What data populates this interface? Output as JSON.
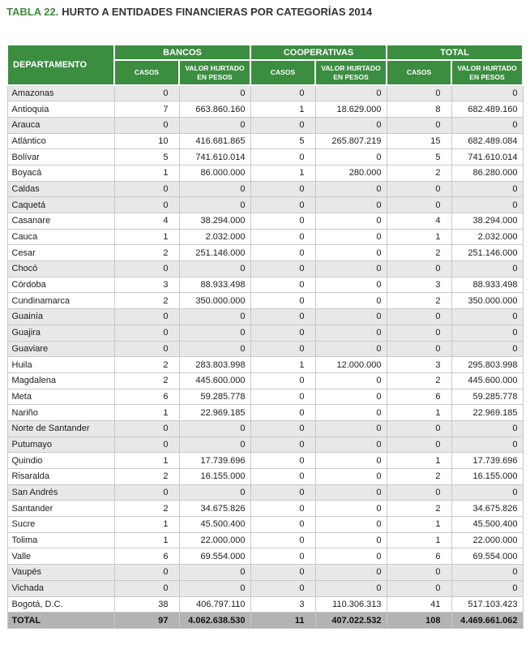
{
  "title": {
    "prefix": "TABLA 22.",
    "rest": "HURTO A ENTIDADES FINANCIERAS POR CATEGORÍAS 2014"
  },
  "colors": {
    "header_green": "#3b8d40",
    "title_green": "#3b8d40",
    "zero_row_gray": "#e8e8e8",
    "total_row_gray": "#b3b3b3",
    "border_gray": "#c9c9c9"
  },
  "chart_data": {
    "type": "table",
    "title": "TABLA 22. HURTO A ENTIDADES FINANCIERAS POR CATEGORÍAS 2014",
    "row_header": "DEPARTAMENTO",
    "column_groups": [
      "BANCOS",
      "COOPERATIVAS",
      "TOTAL"
    ],
    "sub_columns": [
      "CASOS",
      "VALOR HURTADO EN PESOS"
    ],
    "columns": [
      "DEPARTAMENTO",
      "BANCOS CASOS",
      "BANCOS VALOR HURTADO EN PESOS",
      "COOPERATIVAS CASOS",
      "COOPERATIVAS VALOR HURTADO EN PESOS",
      "TOTAL CASOS",
      "TOTAL VALOR HURTADO EN PESOS"
    ],
    "rows": [
      {
        "name": "Amazonas",
        "values": [
          "0",
          "0",
          "0",
          "0",
          "0",
          "0"
        ]
      },
      {
        "name": "Antioquia",
        "values": [
          "7",
          "663.860.160",
          "1",
          "18.629.000",
          "8",
          "682.489.160"
        ]
      },
      {
        "name": "Arauca",
        "values": [
          "0",
          "0",
          "0",
          "0",
          "0",
          "0"
        ]
      },
      {
        "name": "Atlántico",
        "values": [
          "10",
          "416.681.865",
          "5",
          "265.807.219",
          "15",
          "682.489.084"
        ]
      },
      {
        "name": "Bolívar",
        "values": [
          "5",
          "741.610.014",
          "0",
          "0",
          "5",
          "741.610.014"
        ]
      },
      {
        "name": "Boyacá",
        "values": [
          "1",
          "86.000.000",
          "1",
          "280.000",
          "2",
          "86.280.000"
        ]
      },
      {
        "name": "Caldas",
        "values": [
          "0",
          "0",
          "0",
          "0",
          "0",
          "0"
        ]
      },
      {
        "name": "Caquetá",
        "values": [
          "0",
          "0",
          "0",
          "0",
          "0",
          "0"
        ]
      },
      {
        "name": "Casanare",
        "values": [
          "4",
          "38.294.000",
          "0",
          "0",
          "4",
          "38.294.000"
        ]
      },
      {
        "name": "Cauca",
        "values": [
          "1",
          "2.032.000",
          "0",
          "0",
          "1",
          "2.032.000"
        ]
      },
      {
        "name": "Cesar",
        "values": [
          "2",
          "251.146.000",
          "0",
          "0",
          "2",
          "251.146.000"
        ]
      },
      {
        "name": "Chocó",
        "values": [
          "0",
          "0",
          "0",
          "0",
          "0",
          "0"
        ]
      },
      {
        "name": "Córdoba",
        "values": [
          "3",
          "88.933.498",
          "0",
          "0",
          "3",
          "88.933.498"
        ]
      },
      {
        "name": "Cundinamarca",
        "values": [
          "2",
          "350.000.000",
          "0",
          "0",
          "2",
          "350.000.000"
        ]
      },
      {
        "name": "Guainía",
        "values": [
          "0",
          "0",
          "0",
          "0",
          "0",
          "0"
        ]
      },
      {
        "name": "Guajira",
        "values": [
          "0",
          "0",
          "0",
          "0",
          "0",
          "0"
        ]
      },
      {
        "name": "Guaviare",
        "values": [
          "0",
          "0",
          "0",
          "0",
          "0",
          "0"
        ]
      },
      {
        "name": "Huila",
        "values": [
          "2",
          "283.803.998",
          "1",
          "12.000.000",
          "3",
          "295.803.998"
        ]
      },
      {
        "name": "Magdalena",
        "values": [
          "2",
          "445.600.000",
          "0",
          "0",
          "2",
          "445.600.000"
        ]
      },
      {
        "name": "Meta",
        "values": [
          "6",
          "59.285.778",
          "0",
          "0",
          "6",
          "59.285.778"
        ]
      },
      {
        "name": "Nariño",
        "values": [
          "1",
          "22.969.185",
          "0",
          "0",
          "1",
          "22.969.185"
        ]
      },
      {
        "name": "Norte de Santander",
        "values": [
          "0",
          "0",
          "0",
          "0",
          "0",
          "0"
        ]
      },
      {
        "name": "Putumayo",
        "values": [
          "0",
          "0",
          "0",
          "0",
          "0",
          "0"
        ]
      },
      {
        "name": "Quindio",
        "values": [
          "1",
          "17.739.696",
          "0",
          "0",
          "1",
          "17.739.696"
        ]
      },
      {
        "name": "Risaralda",
        "values": [
          "2",
          "16.155.000",
          "0",
          "0",
          "2",
          "16.155.000"
        ]
      },
      {
        "name": "San Andrés",
        "values": [
          "0",
          "0",
          "0",
          "0",
          "0",
          "0"
        ]
      },
      {
        "name": "Santander",
        "values": [
          "2",
          "34.675.826",
          "0",
          "0",
          "2",
          "34.675.826"
        ]
      },
      {
        "name": "Sucre",
        "values": [
          "1",
          "45.500.400",
          "0",
          "0",
          "1",
          "45.500.400"
        ]
      },
      {
        "name": "Tolima",
        "values": [
          "1",
          "22.000.000",
          "0",
          "0",
          "1",
          "22.000.000"
        ]
      },
      {
        "name": "Valle",
        "values": [
          "6",
          "69.554.000",
          "0",
          "0",
          "6",
          "69.554.000"
        ]
      },
      {
        "name": "Vaupés",
        "values": [
          "0",
          "0",
          "0",
          "0",
          "0",
          "0"
        ]
      },
      {
        "name": "Vichada",
        "values": [
          "0",
          "0",
          "0",
          "0",
          "0",
          "0"
        ]
      },
      {
        "name": "Bogotá, D.C.",
        "values": [
          "38",
          "406.797.110",
          "3",
          "110.306.313",
          "41",
          "517.103.423"
        ]
      }
    ],
    "total_row": {
      "name": "TOTAL",
      "values": [
        "97",
        "4.062.638.530",
        "11",
        "407.022.532",
        "108",
        "4.469.661.062"
      ]
    }
  }
}
